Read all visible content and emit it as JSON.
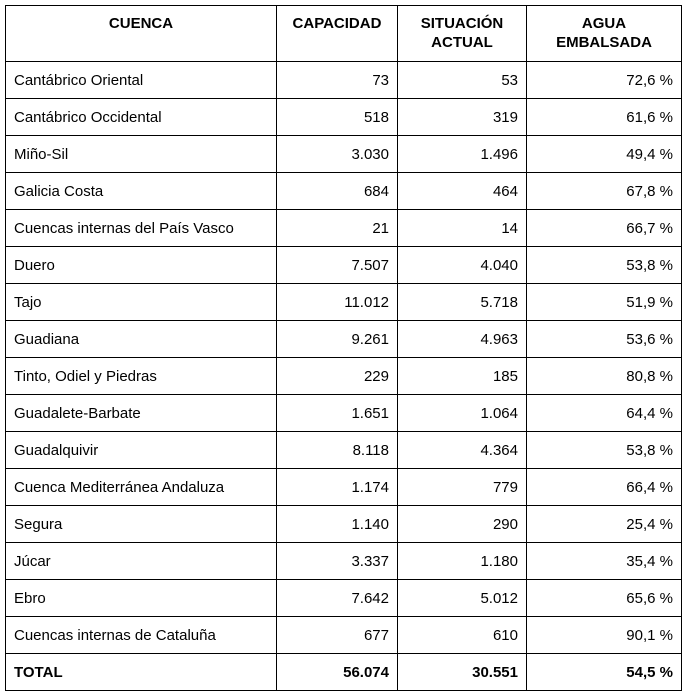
{
  "headers": [
    "CUENCA",
    "CAPACIDAD",
    "SITUACIÓN ACTUAL",
    "AGUA EMBALSADA"
  ],
  "rows": [
    [
      "Cantábrico Oriental",
      "73",
      "53",
      "72,6 %"
    ],
    [
      "Cantábrico Occidental",
      "518",
      "319",
      "61,6 %"
    ],
    [
      "Miño-Sil",
      "3.030",
      "1.496",
      "49,4 %"
    ],
    [
      "Galicia Costa",
      "684",
      "464",
      "67,8 %"
    ],
    [
      "Cuencas internas del País Vasco",
      "21",
      "14",
      "66,7 %"
    ],
    [
      "Duero",
      "7.507",
      "4.040",
      "53,8 %"
    ],
    [
      "Tajo",
      "11.012",
      "5.718",
      "51,9 %"
    ],
    [
      "Guadiana",
      "9.261",
      "4.963",
      "53,6 %"
    ],
    [
      "Tinto, Odiel y Piedras",
      "229",
      "185",
      "80,8 %"
    ],
    [
      "Guadalete-Barbate",
      "1.651",
      "1.064",
      "64,4 %"
    ],
    [
      "Guadalquivir",
      "8.118",
      "4.364",
      "53,8 %"
    ],
    [
      "Cuenca Mediterránea Andaluza",
      "1.174",
      "779",
      "66,4 %"
    ],
    [
      "Segura",
      "1.140",
      "290",
      "25,4 %"
    ],
    [
      "Júcar",
      "3.337",
      "1.180",
      "35,4 %"
    ],
    [
      "Ebro",
      "7.642",
      "5.012",
      "65,6 %"
    ],
    [
      "Cuencas internas de Cataluña",
      "677",
      "610",
      "90,1 %"
    ]
  ],
  "total": [
    "TOTAL",
    "56.074",
    "30.551",
    "54,5 %"
  ]
}
